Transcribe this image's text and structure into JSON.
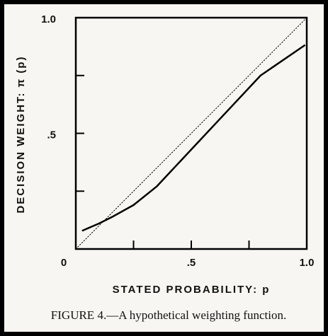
{
  "chart_data": {
    "type": "line",
    "x_label": "STATED PROBABILITY: p",
    "y_label": "DECISION WEIGHT: π (p)",
    "caption": "FIGURE 4.—A hypothetical weighting function.",
    "xlim": [
      0,
      1
    ],
    "ylim": [
      0,
      1
    ],
    "xticks": [
      {
        "value": 0,
        "label": "0"
      },
      {
        "value": 0.5,
        "label": ".5"
      },
      {
        "value": 1,
        "label": "1.0"
      }
    ],
    "yticks": [
      {
        "value": 0.5,
        "label": ".5"
      },
      {
        "value": 1,
        "label": "1.0"
      }
    ],
    "minor_xticks": [
      0.25,
      0.75
    ],
    "minor_yticks": [
      0.25,
      0.75
    ],
    "series": [
      {
        "color": "#000000",
        "style": "solid",
        "x": [
          0.03,
          0.1,
          0.16,
          0.25,
          0.35,
          0.5,
          0.65,
          0.8,
          0.99
        ],
        "y": [
          0.08,
          0.11,
          0.14,
          0.19,
          0.27,
          0.43,
          0.59,
          0.75,
          0.88
        ]
      },
      {
        "color": "#000000",
        "style": "dotted",
        "x": [
          0,
          1
        ],
        "y": [
          0,
          1
        ]
      }
    ]
  }
}
